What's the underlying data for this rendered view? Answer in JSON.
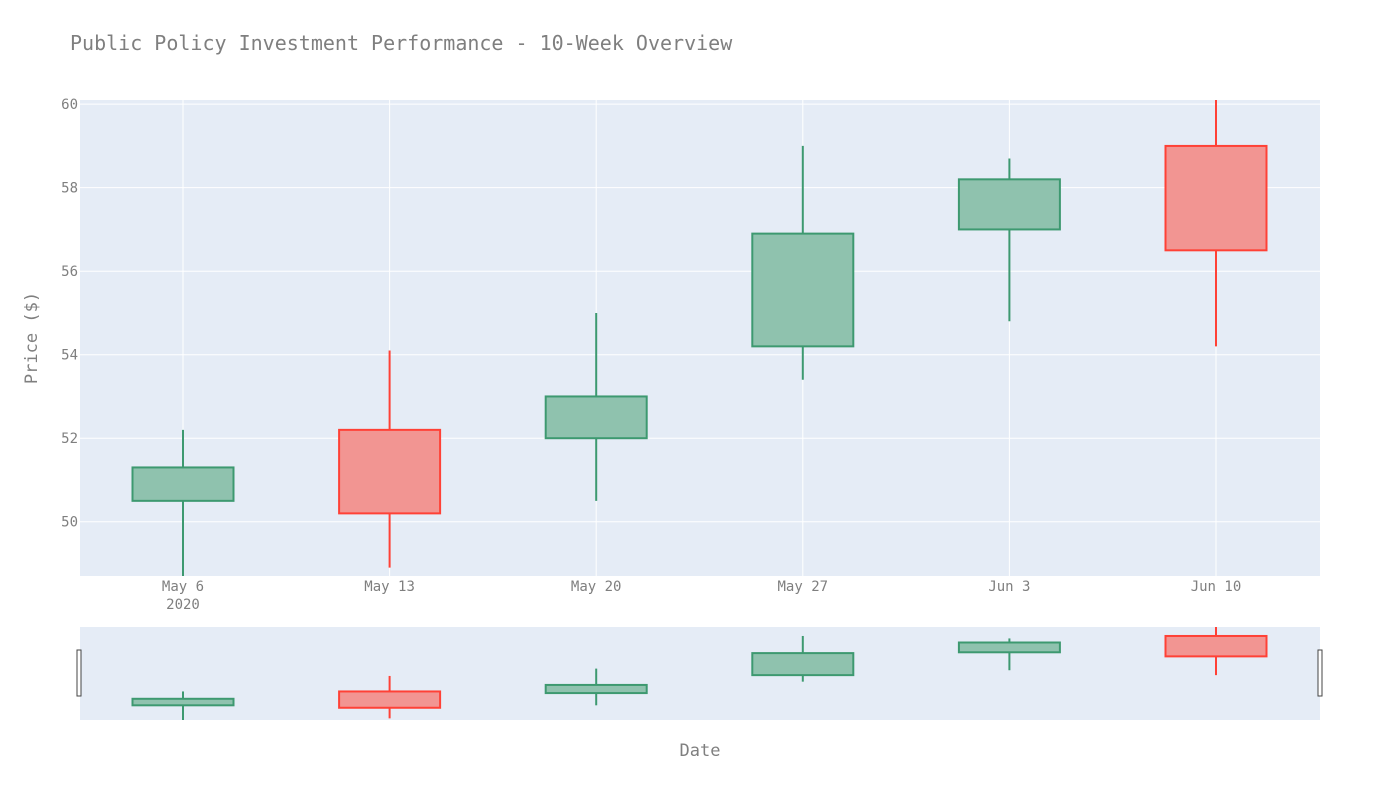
{
  "chart_data": {
    "type": "candlestick",
    "title": "Public Policy Investment Performance - 10-Week Overview",
    "xlabel": "Date",
    "ylabel": "Price ($)",
    "ylim": [
      48.7,
      60.1
    ],
    "yticks": [
      50,
      52,
      54,
      56,
      58,
      60
    ],
    "year_label": "2020",
    "categories": [
      "May 6",
      "May 13",
      "May 20",
      "May 27",
      "Jun 3",
      "Jun 10"
    ],
    "open": [
      50.5,
      52.2,
      52.0,
      54.2,
      57.0,
      59.0
    ],
    "high": [
      52.2,
      54.1,
      55.0,
      59.0,
      58.7,
      60.1
    ],
    "low": [
      48.7,
      48.9,
      50.5,
      53.4,
      54.8,
      54.2
    ],
    "close": [
      51.3,
      50.2,
      53.0,
      56.9,
      58.2,
      56.5
    ],
    "increasing_color": "#3d9970",
    "decreasing_color": "#ff4136",
    "increasing_fill": "#8fc2ae",
    "decreasing_fill": "#f29592",
    "plot_bg": "#e5ecf6",
    "grid": true,
    "rangeslider": true
  }
}
